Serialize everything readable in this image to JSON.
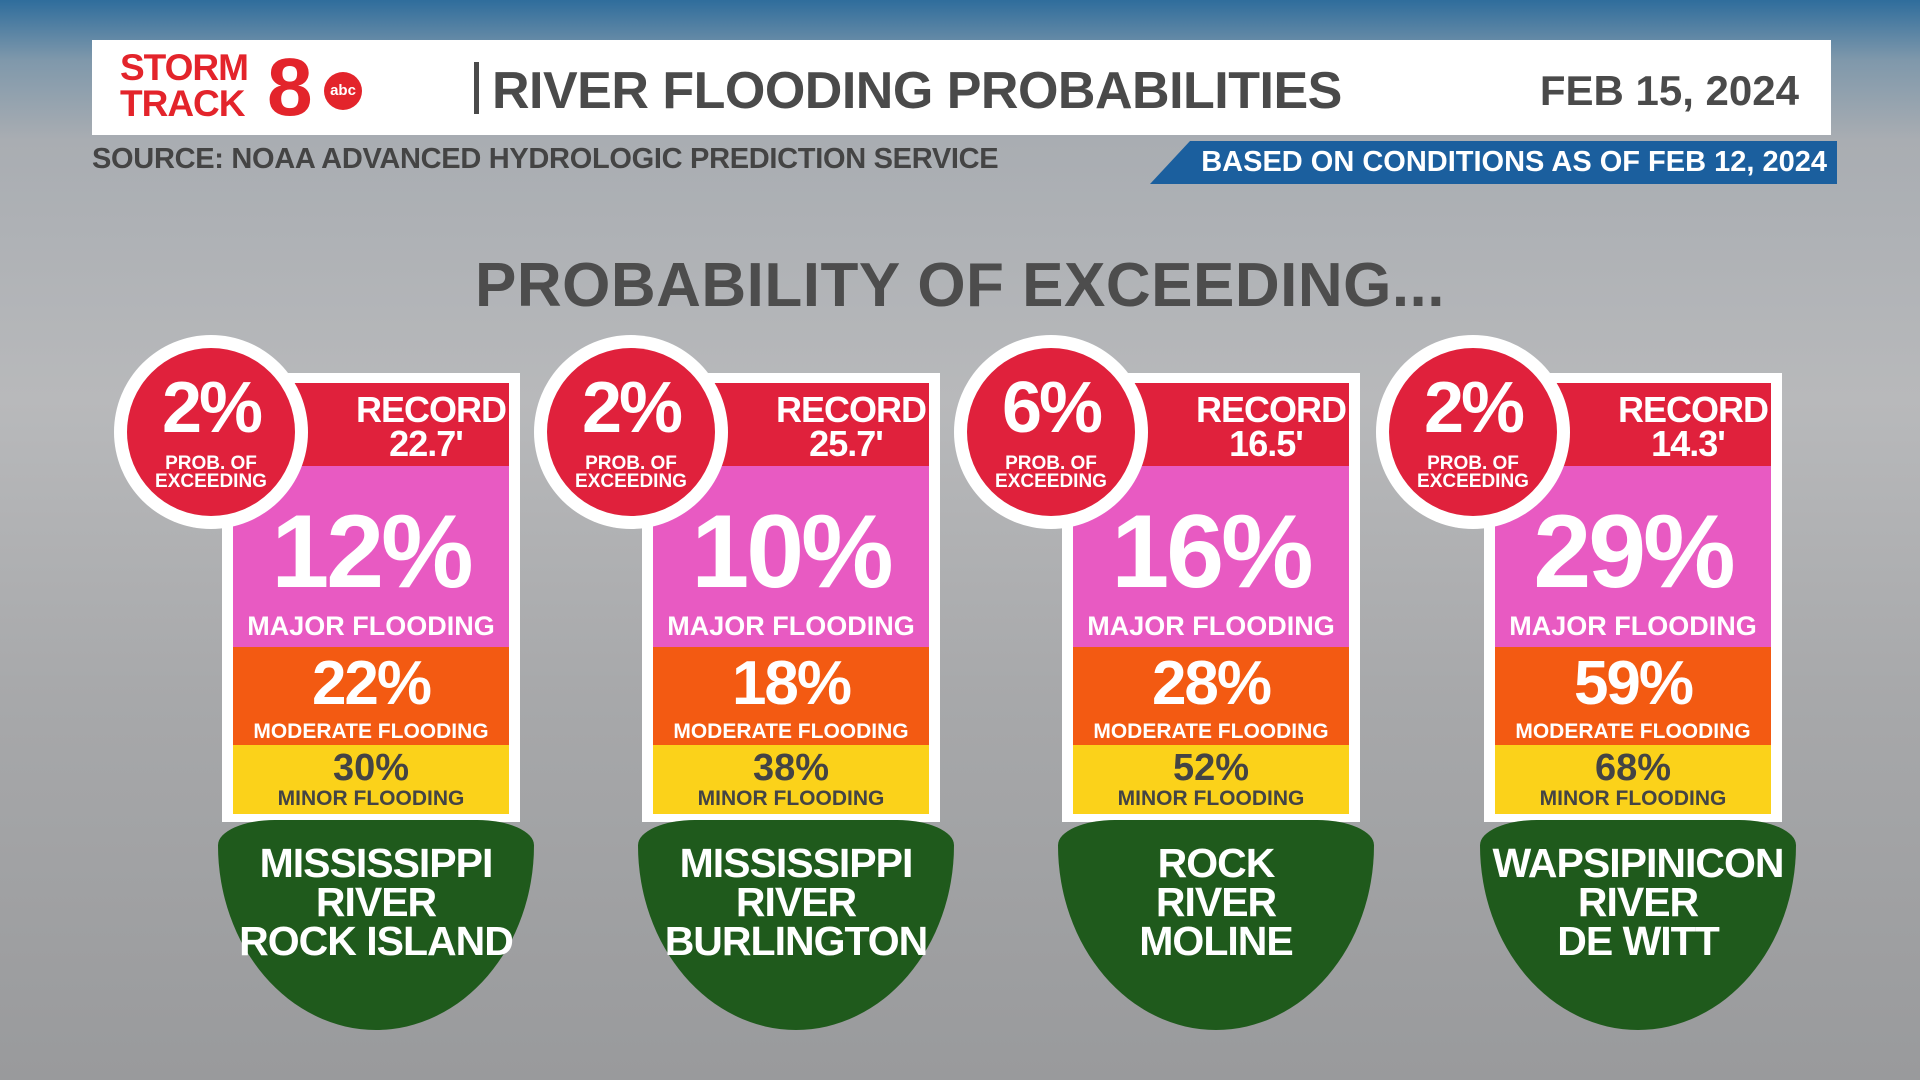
{
  "header": {
    "logo": {
      "line1": "STORM",
      "line2": "TRACK",
      "number": "8",
      "network": "abc"
    },
    "title": "RIVER FLOODING PROBABILITIES",
    "date": "FEB 15, 2024",
    "source": "SOURCE: NOAA ADVANCED HYDROLOGIC PREDICTION SERVICE",
    "conditions": "BASED ON CONDITIONS AS OF FEB 12, 2024"
  },
  "heading": "PROBABILITY OF EXCEEDING...",
  "cards": [
    {
      "record_prob": "2%",
      "record_prob_label": [
        "PROB. OF",
        "EXCEEDING"
      ],
      "record_label": "RECORD",
      "record_value": "22.7'",
      "major": "12%",
      "major_label": "MAJOR FLOODING",
      "moderate": "22%",
      "moderate_label": "MODERATE FLOODING",
      "minor": "30%",
      "minor_label": "MINOR FLOODING",
      "location": [
        "MISSISSIPPI",
        "RIVER",
        "ROCK ISLAND"
      ]
    },
    {
      "record_prob": "2%",
      "record_prob_label": [
        "PROB. OF",
        "EXCEEDING"
      ],
      "record_label": "RECORD",
      "record_value": "25.7'",
      "major": "10%",
      "major_label": "MAJOR FLOODING",
      "moderate": "18%",
      "moderate_label": "MODERATE FLOODING",
      "minor": "38%",
      "minor_label": "MINOR FLOODING",
      "location": [
        "MISSISSIPPI",
        "RIVER",
        "BURLINGTON"
      ]
    },
    {
      "record_prob": "6%",
      "record_prob_label": [
        "PROB. OF",
        "EXCEEDING"
      ],
      "record_label": "RECORD",
      "record_value": "16.5'",
      "major": "16%",
      "major_label": "MAJOR FLOODING",
      "moderate": "28%",
      "moderate_label": "MODERATE FLOODING",
      "minor": "52%",
      "minor_label": "MINOR FLOODING",
      "location": [
        "ROCK",
        "RIVER",
        "MOLINE"
      ]
    },
    {
      "record_prob": "2%",
      "record_prob_label": [
        "PROB. OF",
        "EXCEEDING"
      ],
      "record_label": "RECORD",
      "record_value": "14.3'",
      "major": "29%",
      "major_label": "MAJOR FLOODING",
      "moderate": "59%",
      "moderate_label": "MODERATE FLOODING",
      "minor": "68%",
      "minor_label": "MINOR FLOODING",
      "location": [
        "WAPSIPINICON",
        "RIVER",
        "DE WITT"
      ]
    }
  ]
}
